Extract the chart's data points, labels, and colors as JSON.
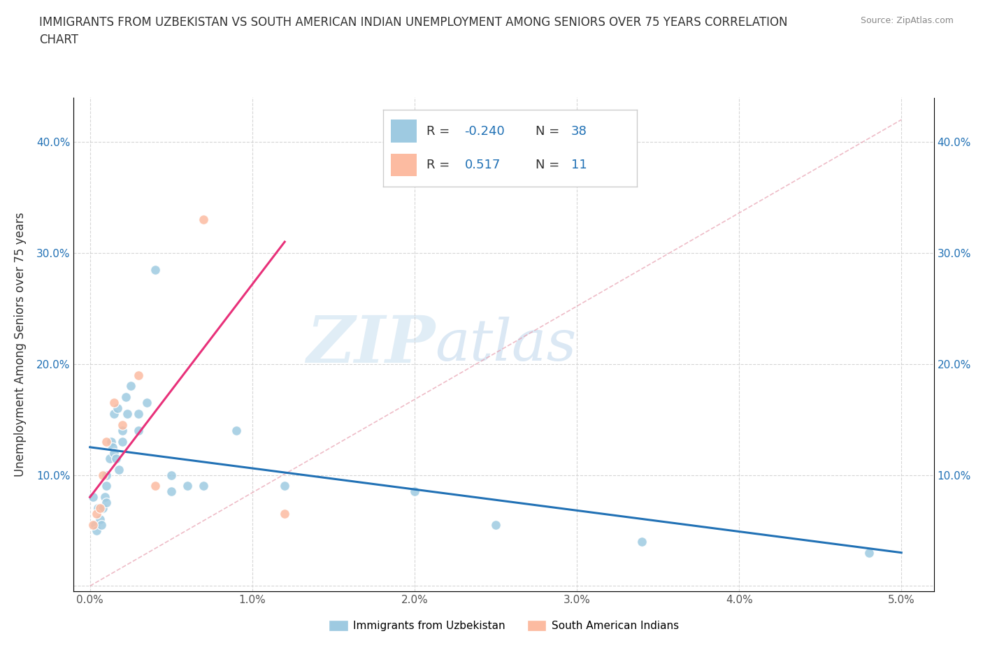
{
  "title_line1": "IMMIGRANTS FROM UZBEKISTAN VS SOUTH AMERICAN INDIAN UNEMPLOYMENT AMONG SENIORS OVER 75 YEARS CORRELATION",
  "title_line2": "CHART",
  "source": "Source: ZipAtlas.com",
  "ylabel": "Unemployment Among Seniors over 75 years",
  "watermark_zip": "ZIP",
  "watermark_atlas": "atlas",
  "blue_scatter_x": [
    0.0002,
    0.0003,
    0.0004,
    0.0005,
    0.0006,
    0.0007,
    0.0008,
    0.0009,
    0.001,
    0.001,
    0.001,
    0.0012,
    0.0013,
    0.0014,
    0.0015,
    0.0015,
    0.0016,
    0.0017,
    0.0018,
    0.002,
    0.002,
    0.0022,
    0.0023,
    0.0025,
    0.003,
    0.003,
    0.0035,
    0.004,
    0.005,
    0.005,
    0.006,
    0.007,
    0.009,
    0.012,
    0.02,
    0.025,
    0.034,
    0.048
  ],
  "blue_scatter_y": [
    0.08,
    0.055,
    0.05,
    0.07,
    0.06,
    0.055,
    0.07,
    0.08,
    0.09,
    0.075,
    0.1,
    0.115,
    0.13,
    0.125,
    0.12,
    0.155,
    0.115,
    0.16,
    0.105,
    0.13,
    0.14,
    0.17,
    0.155,
    0.18,
    0.14,
    0.155,
    0.165,
    0.285,
    0.085,
    0.1,
    0.09,
    0.09,
    0.14,
    0.09,
    0.085,
    0.055,
    0.04,
    0.03
  ],
  "pink_scatter_x": [
    0.0002,
    0.0004,
    0.0006,
    0.0008,
    0.001,
    0.0015,
    0.002,
    0.003,
    0.004,
    0.007,
    0.012
  ],
  "pink_scatter_y": [
    0.055,
    0.065,
    0.07,
    0.1,
    0.13,
    0.165,
    0.145,
    0.19,
    0.09,
    0.33,
    0.065
  ],
  "blue_line_x": [
    0.0,
    0.05
  ],
  "blue_line_y": [
    0.125,
    0.03
  ],
  "pink_line_x": [
    0.0,
    0.012
  ],
  "pink_line_y": [
    0.08,
    0.31
  ],
  "diag_line_x": [
    0.0,
    0.05
  ],
  "diag_line_y": [
    0.0,
    0.42
  ],
  "blue_color": "#9ecae1",
  "pink_color": "#fcbba1",
  "blue_line_color": "#2171b5",
  "pink_line_color": "#e8317a",
  "diag_line_color": "#e8a0b0",
  "xlim": [
    -0.001,
    0.052
  ],
  "ylim": [
    -0.005,
    0.44
  ],
  "xtick_vals": [
    0.0,
    0.01,
    0.02,
    0.03,
    0.04,
    0.05
  ],
  "ytick_vals": [
    0.0,
    0.1,
    0.2,
    0.3,
    0.4
  ],
  "xticklabels": [
    "0.0%",
    "1.0%",
    "2.0%",
    "3.0%",
    "4.0%",
    "5.0%"
  ],
  "yticklabels": [
    "",
    "10.0%",
    "20.0%",
    "30.0%",
    "40.0%"
  ],
  "legend1_r_label": "R = ",
  "legend1_r_val": "-0.240",
  "legend1_n_label": "N = ",
  "legend1_n_val": "38",
  "legend2_r_label": "R =  ",
  "legend2_r_val": "0.517",
  "legend2_n_label": "N =  ",
  "legend2_n_val": "11",
  "legend_bottom_label1": "Immigrants from Uzbekistan",
  "legend_bottom_label2": "South American Indians",
  "scatter_size": 100,
  "background_color": "#ffffff",
  "grid_color": "#cccccc",
  "text_color": "#333333",
  "tick_color": "#2171b5"
}
